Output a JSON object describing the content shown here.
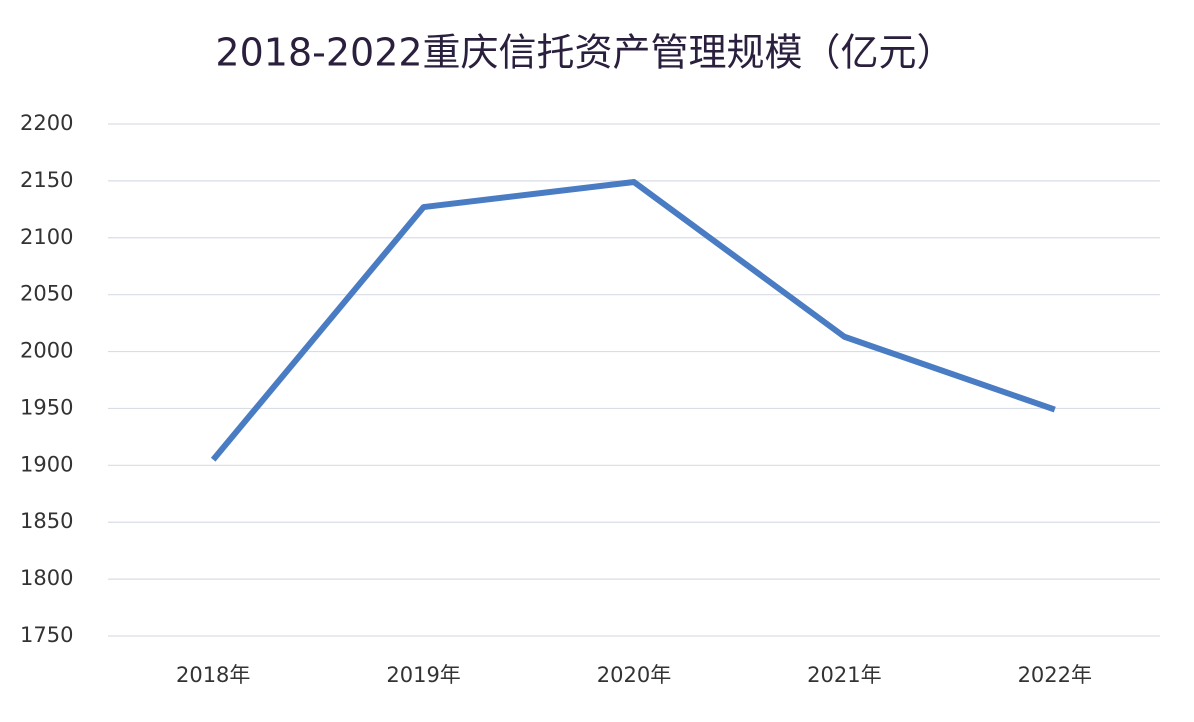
{
  "chart_data": {
    "type": "line",
    "title": "2018-2022重庆信托资产管理规模（亿元）",
    "categories": [
      "2018年",
      "2019年",
      "2020年",
      "2021年",
      "2022年"
    ],
    "series": [
      {
        "name": "资产管理规模",
        "color": "#4a7cc4",
        "values": [
          1905,
          2127,
          2149,
          2013,
          1949
        ]
      }
    ],
    "ylim": [
      1750,
      2200
    ],
    "yticks": [
      1750,
      1800,
      1850,
      1900,
      1950,
      2000,
      2050,
      2100,
      2150,
      2200
    ],
    "grid": true
  }
}
